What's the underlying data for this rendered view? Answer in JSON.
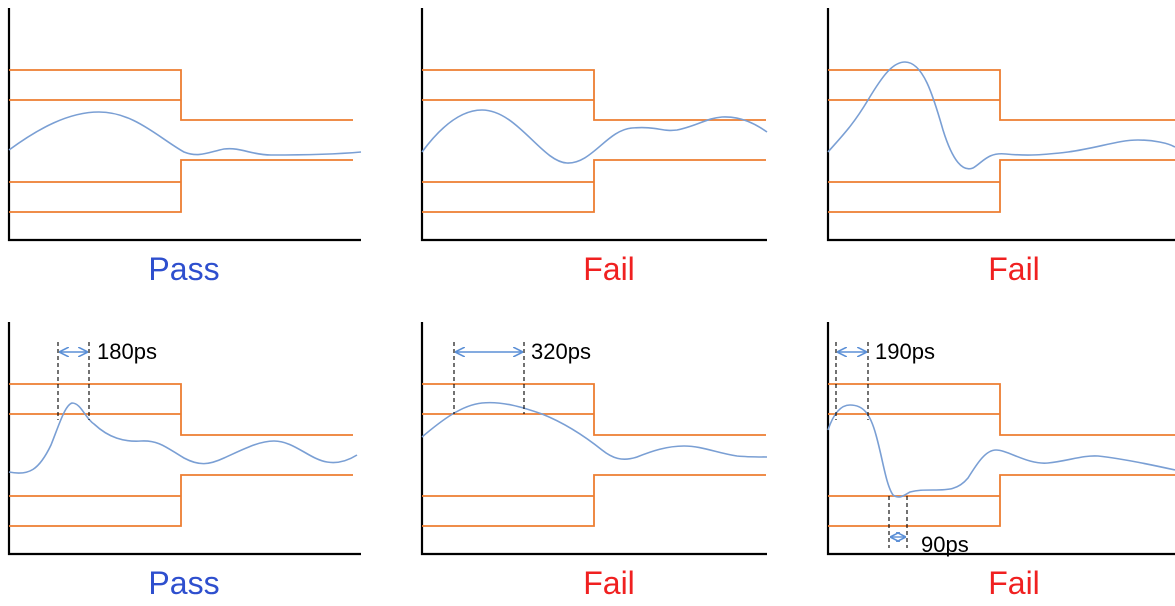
{
  "colors": {
    "pass": "#2E4FCE",
    "fail": "#F02020",
    "mask": "#ED7D31",
    "waveform": "#7A9FD4",
    "axis": "#000000"
  },
  "panels": [
    {
      "verdict": "Pass",
      "status": "pass",
      "measurements": []
    },
    {
      "verdict": "Fail",
      "status": "fail",
      "measurements": []
    },
    {
      "verdict": "Fail",
      "status": "fail",
      "measurements": []
    },
    {
      "verdict": "Pass",
      "status": "pass",
      "measurements": [
        {
          "label": "180ps"
        }
      ]
    },
    {
      "verdict": "Fail",
      "status": "fail",
      "measurements": [
        {
          "label": "320ps"
        }
      ]
    },
    {
      "verdict": "Fail",
      "status": "fail",
      "measurements": [
        {
          "label": "190ps"
        },
        {
          "label": "90ps"
        }
      ]
    }
  ]
}
